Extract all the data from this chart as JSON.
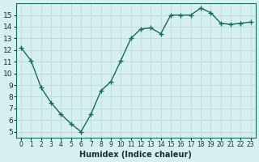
{
  "x": [
    0,
    1,
    2,
    3,
    4,
    5,
    6,
    7,
    8,
    9,
    10,
    11,
    12,
    13,
    14,
    15,
    16,
    17,
    18,
    19,
    20,
    21,
    22,
    23
  ],
  "y": [
    12.2,
    11.1,
    8.8,
    7.5,
    6.5,
    5.7,
    5.0,
    6.5,
    8.5,
    9.3,
    11.1,
    13.0,
    13.8,
    13.9,
    13.4,
    15.0,
    15.0,
    15.0,
    15.6,
    15.2,
    14.3,
    14.2,
    14.3,
    14.4
  ],
  "xlabel": "Humidex (Indice chaleur)",
  "line_color": "#1a6b5e",
  "bg_color": "#d6f0ef",
  "grid_color": "#c0dedd",
  "tick_label_color": "#1a3030",
  "xlim": [
    -0.5,
    23.5
  ],
  "ylim": [
    4.5,
    16.0
  ],
  "yticks": [
    5,
    6,
    7,
    8,
    9,
    10,
    11,
    12,
    13,
    14,
    15
  ],
  "xtick_labels": [
    "0",
    "1",
    "2",
    "3",
    "4",
    "5",
    "6",
    "7",
    "8",
    "9",
    "10",
    "11",
    "12",
    "13",
    "14",
    "15",
    "16",
    "17",
    "18",
    "19",
    "20",
    "21",
    "22",
    "23"
  ]
}
